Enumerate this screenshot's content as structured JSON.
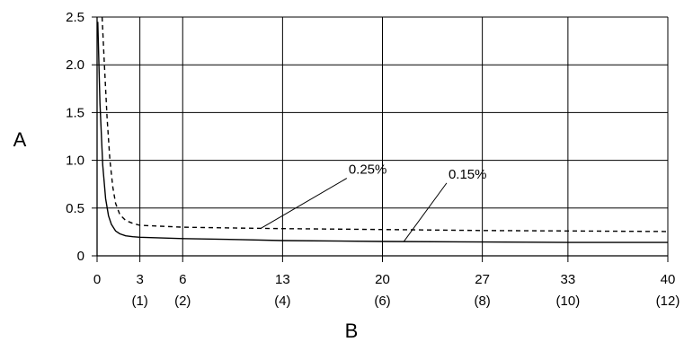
{
  "chart_data": {
    "type": "line",
    "title": "",
    "ylabel": "A",
    "xlabel": "B",
    "xlim": [
      0,
      40
    ],
    "ylim": [
      0,
      2.5
    ],
    "grid": true,
    "y_ticks": [
      {
        "value": 0,
        "label": "0"
      },
      {
        "value": 0.5,
        "label": "0.5"
      },
      {
        "value": 1.0,
        "label": "1.0"
      },
      {
        "value": 1.5,
        "label": "1.5"
      },
      {
        "value": 2.0,
        "label": "2.0"
      },
      {
        "value": 2.5,
        "label": "2.5"
      }
    ],
    "x_ticks": [
      {
        "value": 0,
        "label": "0",
        "sub": ""
      },
      {
        "value": 3,
        "label": "3",
        "sub": "(1)"
      },
      {
        "value": 6,
        "label": "6",
        "sub": "(2)"
      },
      {
        "value": 13,
        "label": "13",
        "sub": "(4)"
      },
      {
        "value": 20,
        "label": "20",
        "sub": "(6)"
      },
      {
        "value": 27,
        "label": "27",
        "sub": "(8)"
      },
      {
        "value": 33,
        "label": "33",
        "sub": "(10)"
      },
      {
        "value": 40,
        "label": "40",
        "sub": "(12)"
      }
    ],
    "series": [
      {
        "name": "0.15%",
        "style": "solid",
        "color": "#000000",
        "x": [
          0.05,
          0.2,
          0.4,
          0.6,
          0.8,
          1.0,
          1.3,
          1.6,
          2.0,
          2.5,
          3,
          6,
          10,
          13,
          20,
          27,
          33,
          40
        ],
        "y": [
          2.45,
          1.6,
          0.95,
          0.6,
          0.42,
          0.33,
          0.26,
          0.23,
          0.21,
          0.2,
          0.195,
          0.18,
          0.17,
          0.16,
          0.15,
          0.145,
          0.14,
          0.14
        ]
      },
      {
        "name": "0.25%",
        "style": "dashed",
        "color": "#000000",
        "x": [
          0.35,
          0.5,
          0.7,
          0.9,
          1.1,
          1.3,
          1.6,
          2.0,
          2.5,
          3,
          6,
          10,
          13,
          20,
          27,
          33,
          40
        ],
        "y": [
          2.5,
          2.05,
          1.45,
          1.0,
          0.72,
          0.55,
          0.43,
          0.37,
          0.34,
          0.32,
          0.3,
          0.29,
          0.285,
          0.275,
          0.265,
          0.26,
          0.255
        ]
      }
    ],
    "annotations": [
      {
        "text": "0.25%",
        "series": "0.25%",
        "point_x": 11.5,
        "point_y": 0.29,
        "text_x": 17.5,
        "text_y": 0.85
      },
      {
        "text": "0.15%",
        "series": "0.15%",
        "point_x": 21.5,
        "point_y": 0.15,
        "text_x": 24.5,
        "text_y": 0.8
      }
    ]
  }
}
